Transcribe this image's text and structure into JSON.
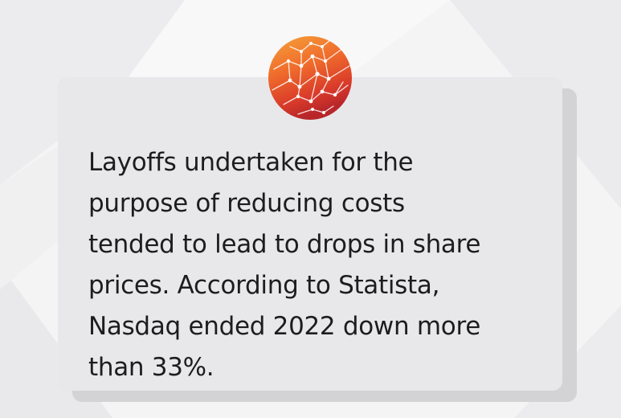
{
  "card": {
    "quote_text": "Layoffs undertaken for the\npurpose of reducing costs\ntended to lead to drops in share\nprices. According to Statista,\nNasdaq ended 2022 down more\nthan 33%."
  },
  "logo": {
    "icon": "network-globe-icon",
    "colors": [
      "#f7a33a",
      "#ef6a2c",
      "#d83a2a",
      "#b8262a"
    ]
  },
  "theme": {
    "background": "#f4f4f5",
    "card_background": "#e8e8ea",
    "card_shadow": "#d3d3d5",
    "text_color": "#1d1d1f"
  }
}
